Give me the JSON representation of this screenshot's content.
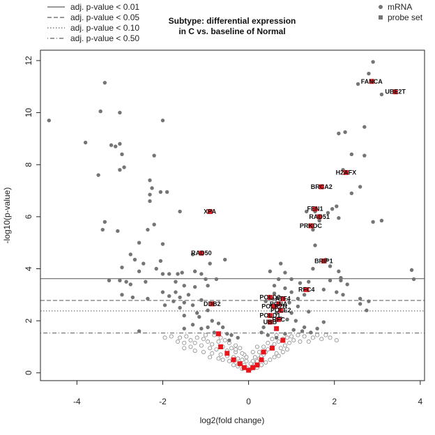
{
  "chart_data": {
    "type": "scatter",
    "title_lines": [
      "Subtype: differential expression",
      "in C vs. baseline of Normal"
    ],
    "xlabel": "log2(fold change)",
    "ylabel": "-log10(p-value)",
    "xlim": [
      -4.85,
      4.1
    ],
    "ylim": [
      -0.3,
      12.4
    ],
    "x_ticks": [
      -4,
      -2,
      0,
      2,
      4
    ],
    "y_ticks": [
      0,
      2,
      4,
      6,
      8,
      10,
      12
    ],
    "grid": false,
    "thresholds": [
      {
        "label": "adj. p-value < 0.01",
        "y": 3.62,
        "style": "solid"
      },
      {
        "label": "adj. p-value < 0.05",
        "y": 2.78,
        "style": "dashed"
      },
      {
        "label": "adj. p-value < 0.10",
        "y": 2.38,
        "style": "dotted"
      },
      {
        "label": "adj. p-value < 0.50",
        "y": 1.53,
        "style": "dotdash"
      }
    ],
    "legend_right": [
      {
        "label": "mRNA",
        "shape": "circle"
      },
      {
        "label": "probe set",
        "shape": "square"
      }
    ],
    "colors": {
      "mrna": "#757575",
      "probe": "#e8161c",
      "nonsig_stroke": "#8a8a8a",
      "axis": "#222222",
      "threshold": "#555555"
    },
    "mrna_points": [
      [
        -4.65,
        9.7
      ],
      [
        -3.8,
        8.85
      ],
      [
        -3.5,
        7.6
      ],
      [
        -3.35,
        11.15
      ],
      [
        -3.45,
        10.05
      ],
      [
        -3.0,
        10.0
      ],
      [
        -3.2,
        8.75
      ],
      [
        -3.1,
        8.7
      ],
      [
        -2.95,
        8.4
      ],
      [
        -2.9,
        7.9
      ],
      [
        -3.0,
        7.8
      ],
      [
        -3.0,
        8.8
      ],
      [
        -2.2,
        8.35
      ],
      [
        -2.0,
        9.7
      ],
      [
        -2.3,
        7.4
      ],
      [
        -2.25,
        7.1
      ],
      [
        -2.05,
        6.95
      ],
      [
        -1.9,
        6.95
      ],
      [
        -2.3,
        6.85
      ],
      [
        -2.3,
        6.6
      ],
      [
        -1.6,
        6.2
      ],
      [
        -3.35,
        5.8
      ],
      [
        -3.4,
        5.5
      ],
      [
        -3.05,
        5.45
      ],
      [
        -2.2,
        5.7
      ],
      [
        -2.35,
        5.5
      ],
      [
        -2.55,
        5.0
      ],
      [
        -2.0,
        4.95
      ],
      [
        -2.05,
        4.3
      ],
      [
        -2.15,
        4.0
      ],
      [
        -2.45,
        4.2
      ],
      [
        -2.65,
        4.35
      ],
      [
        -2.75,
        4.55
      ],
      [
        -2.95,
        4.05
      ],
      [
        -2.55,
        3.9
      ],
      [
        -2.4,
        3.5
      ],
      [
        -2.0,
        3.8
      ],
      [
        -1.85,
        3.8
      ],
      [
        -1.65,
        3.8
      ],
      [
        -1.55,
        3.85
      ],
      [
        -1.25,
        3.9
      ],
      [
        -1.3,
        4.55
      ],
      [
        -0.9,
        4.2
      ],
      [
        -0.55,
        4.35
      ],
      [
        -1.1,
        3.8
      ],
      [
        -1.0,
        3.6
      ],
      [
        -0.95,
        3.35
      ],
      [
        -0.75,
        3.6
      ],
      [
        -3.25,
        3.55
      ],
      [
        -2.85,
        3.5
      ],
      [
        -2.75,
        3.4
      ],
      [
        -2.95,
        3.0
      ],
      [
        -2.7,
        2.9
      ],
      [
        -2.35,
        2.85
      ],
      [
        -2.0,
        3.1
      ],
      [
        -1.85,
        2.95
      ],
      [
        -1.95,
        2.6
      ],
      [
        -1.75,
        2.75
      ],
      [
        -1.6,
        2.9
      ],
      [
        -1.5,
        2.7
      ],
      [
        -1.6,
        2.5
      ],
      [
        -1.3,
        2.6
      ],
      [
        -1.1,
        2.8
      ],
      [
        -1.2,
        2.3
      ],
      [
        -1.5,
        2.2
      ],
      [
        -1.15,
        2.15
      ],
      [
        -0.95,
        2.4
      ],
      [
        -0.85,
        2.0
      ],
      [
        -0.95,
        1.75
      ],
      [
        -1.1,
        1.7
      ],
      [
        -1.3,
        1.85
      ],
      [
        -1.5,
        1.7
      ],
      [
        -0.7,
        1.9
      ],
      [
        -0.6,
        1.75
      ],
      [
        -0.8,
        1.55
      ],
      [
        -0.5,
        1.5
      ],
      [
        -0.4,
        1.45
      ],
      [
        -0.25,
        1.35
      ],
      [
        -0.45,
        1.25
      ],
      [
        -2.55,
        1.6
      ],
      [
        -3.0,
        3.55
      ],
      [
        -1.7,
        3.1
      ],
      [
        -1.4,
        3.0
      ],
      [
        -1.7,
        3.5
      ],
      [
        -1.5,
        3.35
      ],
      [
        -1.25,
        3.3
      ],
      [
        2.9,
        11.95
      ],
      [
        2.8,
        11.5
      ],
      [
        2.55,
        11.1
      ],
      [
        3.1,
        10.7
      ],
      [
        2.1,
        9.2
      ],
      [
        2.25,
        9.25
      ],
      [
        2.7,
        9.45
      ],
      [
        2.4,
        8.4
      ],
      [
        2.7,
        8.35
      ],
      [
        2.2,
        7.8
      ],
      [
        2.4,
        6.9
      ],
      [
        2.6,
        7.15
      ],
      [
        2.05,
        6.4
      ],
      [
        1.95,
        6.3
      ],
      [
        1.85,
        6.15
      ],
      [
        2.1,
        5.95
      ],
      [
        1.35,
        6.2
      ],
      [
        1.55,
        6.2
      ],
      [
        1.65,
        5.85
      ],
      [
        1.5,
        5.5
      ],
      [
        2.9,
        5.8
      ],
      [
        3.1,
        5.85
      ],
      [
        1.55,
        4.9
      ],
      [
        1.9,
        4.1
      ],
      [
        1.5,
        4.0
      ],
      [
        0.85,
        3.85
      ],
      [
        0.75,
        4.2
      ],
      [
        0.5,
        3.9
      ],
      [
        0.7,
        3.6
      ],
      [
        1.0,
        3.6
      ],
      [
        1.2,
        3.45
      ],
      [
        1.4,
        3.5
      ],
      [
        1.9,
        3.55
      ],
      [
        2.3,
        3.4
      ],
      [
        2.15,
        3.55
      ],
      [
        1.75,
        3.2
      ],
      [
        2.05,
        3.1
      ],
      [
        0.6,
        3.35
      ],
      [
        0.85,
        3.25
      ],
      [
        1.0,
        3.1
      ],
      [
        1.3,
        3.0
      ],
      [
        1.15,
        2.85
      ],
      [
        0.95,
        2.7
      ],
      [
        0.6,
        3.05
      ],
      [
        0.55,
        2.6
      ],
      [
        0.65,
        2.3
      ],
      [
        0.75,
        2.1
      ],
      [
        1.0,
        2.3
      ],
      [
        1.15,
        2.55
      ],
      [
        1.4,
        2.35
      ],
      [
        2.2,
        3.0
      ],
      [
        2.6,
        2.85
      ],
      [
        2.8,
        2.75
      ],
      [
        2.75,
        2.4
      ],
      [
        2.6,
        2.65
      ],
      [
        0.5,
        1.95
      ],
      [
        0.35,
        1.75
      ],
      [
        0.3,
        1.55
      ],
      [
        0.45,
        1.45
      ],
      [
        0.65,
        1.35
      ],
      [
        0.85,
        1.5
      ],
      [
        1.05,
        1.65
      ],
      [
        1.25,
        1.6
      ],
      [
        1.3,
        1.75
      ],
      [
        1.45,
        1.55
      ],
      [
        1.6,
        1.7
      ],
      [
        1.75,
        1.95
      ],
      [
        0.55,
        2.85
      ],
      [
        0.4,
        2.75
      ],
      [
        3.8,
        3.95
      ],
      [
        3.85,
        3.6
      ],
      [
        2.15,
        3.65
      ],
      [
        2.1,
        3.9
      ],
      [
        1.8,
        4.35
      ],
      [
        0.9,
        2.05
      ],
      [
        1.1,
        2.0
      ]
    ],
    "nonsig_points": [
      [
        -1.8,
        1.4
      ],
      [
        -1.6,
        1.35
      ],
      [
        -1.45,
        1.4
      ],
      [
        -1.35,
        1.25
      ],
      [
        -1.2,
        1.35
      ],
      [
        -1.05,
        1.3
      ],
      [
        -0.95,
        1.2
      ],
      [
        -0.85,
        1.1
      ],
      [
        -0.7,
        1.2
      ],
      [
        -1.25,
        1.15
      ],
      [
        -1.1,
        1.05
      ],
      [
        -0.9,
        0.95
      ],
      [
        -0.75,
        0.9
      ],
      [
        -0.6,
        1.0
      ],
      [
        -0.5,
        0.85
      ],
      [
        -0.4,
        0.95
      ],
      [
        -0.3,
        0.8
      ],
      [
        -0.85,
        0.75
      ],
      [
        -0.65,
        0.7
      ],
      [
        -0.5,
        0.65
      ],
      [
        -0.35,
        0.6
      ],
      [
        -0.25,
        0.55
      ],
      [
        -0.15,
        0.5
      ],
      [
        -0.6,
        0.5
      ],
      [
        -0.45,
        0.45
      ],
      [
        -0.3,
        0.4
      ],
      [
        -0.2,
        0.35
      ],
      [
        -0.1,
        0.3
      ],
      [
        -0.05,
        0.2
      ],
      [
        -0.15,
        0.15
      ],
      [
        -0.25,
        0.25
      ],
      [
        -0.35,
        0.3
      ],
      [
        -0.7,
        0.55
      ],
      [
        -0.9,
        0.6
      ],
      [
        -1.05,
        0.8
      ],
      [
        -1.35,
        1.0
      ],
      [
        -1.5,
        1.15
      ],
      [
        -1.65,
        1.2
      ],
      [
        -1.95,
        1.35
      ],
      [
        -0.55,
        1.25
      ],
      [
        -0.45,
        1.15
      ],
      [
        -0.3,
        1.05
      ],
      [
        -0.2,
        0.95
      ],
      [
        -0.1,
        0.7
      ],
      [
        -0.05,
        0.45
      ],
      [
        0.0,
        0.1
      ],
      [
        0.05,
        0.15
      ],
      [
        0.1,
        0.25
      ],
      [
        0.15,
        0.35
      ],
      [
        0.2,
        0.45
      ],
      [
        0.25,
        0.55
      ],
      [
        0.3,
        0.65
      ],
      [
        0.35,
        0.7
      ],
      [
        0.4,
        0.8
      ],
      [
        0.45,
        0.9
      ],
      [
        0.55,
        1.0
      ],
      [
        0.6,
        1.1
      ],
      [
        0.7,
        1.2
      ],
      [
        0.8,
        1.3
      ],
      [
        0.9,
        1.35
      ],
      [
        1.0,
        1.4
      ],
      [
        1.15,
        1.45
      ],
      [
        1.3,
        1.4
      ],
      [
        1.5,
        1.35
      ],
      [
        1.7,
        1.3
      ],
      [
        1.9,
        1.35
      ],
      [
        2.05,
        1.25
      ],
      [
        0.15,
        0.6
      ],
      [
        0.25,
        0.8
      ],
      [
        0.35,
        1.0
      ],
      [
        0.45,
        1.15
      ],
      [
        0.55,
        1.3
      ],
      [
        0.65,
        0.75
      ],
      [
        0.75,
        0.95
      ],
      [
        0.85,
        1.05
      ],
      [
        0.95,
        1.15
      ],
      [
        1.05,
        1.25
      ],
      [
        1.2,
        1.2
      ],
      [
        1.4,
        1.2
      ],
      [
        0.1,
        0.45
      ],
      [
        0.2,
        0.2
      ],
      [
        0.3,
        0.3
      ],
      [
        0.4,
        0.4
      ],
      [
        0.5,
        0.5
      ],
      [
        0.6,
        0.6
      ],
      [
        0.7,
        0.65
      ],
      [
        0.8,
        0.8
      ],
      [
        0.05,
        0.35
      ],
      [
        -0.05,
        0.6
      ],
      [
        -0.15,
        0.75
      ],
      [
        -0.3,
        0.9
      ],
      [
        -1.5,
        0.95
      ],
      [
        -1.25,
        0.85
      ],
      [
        -1.0,
        1.45
      ],
      [
        -0.8,
        1.45
      ],
      [
        -0.65,
        1.35
      ],
      [
        0.2,
        1.0
      ],
      [
        0.1,
        0.8
      ],
      [
        1.6,
        1.45
      ],
      [
        1.8,
        1.45
      ],
      [
        0.65,
        1.45
      ],
      [
        0.9,
        0.9
      ]
    ],
    "probe_points": [
      {
        "x": 2.87,
        "y": 11.2,
        "label": "FANCA"
      },
      {
        "x": 3.42,
        "y": 10.8,
        "label": "UBE2T"
      },
      {
        "x": 2.27,
        "y": 7.7,
        "label": "H2AFX"
      },
      {
        "x": 1.7,
        "y": 7.15,
        "label": "BRCA2"
      },
      {
        "x": -0.9,
        "y": 6.2,
        "label": "XPA"
      },
      {
        "x": 1.55,
        "y": 6.3,
        "label": "FEN1"
      },
      {
        "x": 1.65,
        "y": 6.0,
        "label": "RAD51"
      },
      {
        "x": 1.45,
        "y": 5.65,
        "label": "PRKDC"
      },
      {
        "x": -1.1,
        "y": 4.6,
        "label": "RAD50"
      },
      {
        "x": 1.75,
        "y": 4.3,
        "label": "BRIP1"
      },
      {
        "x": 1.35,
        "y": 3.2,
        "label": "RFC4"
      },
      {
        "x": 0.5,
        "y": 2.9,
        "label": "POLD3"
      },
      {
        "x": 0.8,
        "y": 2.85,
        "label": "ATF4"
      },
      {
        "x": 0.7,
        "y": 2.65,
        "label": "PCNA"
      },
      {
        "x": -0.85,
        "y": 2.65,
        "label": "DDB2"
      },
      {
        "x": 0.6,
        "y": 2.55,
        "label": "POLR2H"
      },
      {
        "x": 0.75,
        "y": 2.4,
        "label": "POLE2"
      },
      {
        "x": 0.5,
        "y": 2.2,
        "label": "POLD1"
      },
      {
        "x": 0.7,
        "y": 2.05,
        "label": "RFC"
      },
      {
        "x": 0.5,
        "y": 1.95,
        "label": "UBB"
      },
      {
        "x": 0.65,
        "y": 1.7,
        "label": ""
      },
      {
        "x": 0.8,
        "y": 1.25,
        "label": ""
      },
      {
        "x": 0.55,
        "y": 0.95,
        "label": ""
      },
      {
        "x": 0.35,
        "y": 0.8,
        "label": ""
      },
      {
        "x": 0.3,
        "y": 0.5,
        "label": ""
      },
      {
        "x": 0.2,
        "y": 0.3,
        "label": ""
      },
      {
        "x": 0.1,
        "y": 0.2,
        "label": ""
      },
      {
        "x": 0.0,
        "y": 0.1,
        "label": ""
      },
      {
        "x": -0.1,
        "y": 0.2,
        "label": ""
      },
      {
        "x": -0.2,
        "y": 0.35,
        "label": ""
      },
      {
        "x": -0.35,
        "y": 0.5,
        "label": ""
      },
      {
        "x": -0.5,
        "y": 0.75,
        "label": ""
      },
      {
        "x": -0.65,
        "y": 1.0,
        "label": ""
      },
      {
        "x": -0.7,
        "y": 1.5,
        "label": ""
      }
    ]
  }
}
